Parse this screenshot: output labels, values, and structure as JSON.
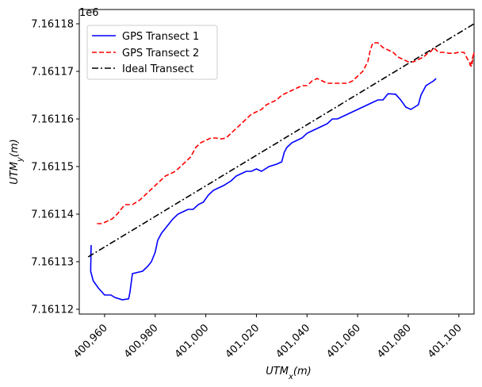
{
  "chart_data": {
    "type": "line",
    "title": "",
    "xlabel_main": "UTM",
    "xlabel_sub": "x",
    "xlabel_unit": "(m)",
    "ylabel_main": "UTM",
    "ylabel_sub": "y",
    "ylabel_unit": "(m)",
    "y_offset_label": "1e6",
    "xlim": [
      400950,
      401106
    ],
    "ylim": [
      7.161119,
      7.161183
    ],
    "xticks": [
      400960,
      400980,
      401000,
      401020,
      401040,
      401060,
      401080,
      401100
    ],
    "xtick_labels": [
      "400,960",
      "400,980",
      "401,000",
      "401,020",
      "401,040",
      "401,060",
      "401,080",
      "401,100"
    ],
    "yticks": [
      7.16112,
      7.16113,
      7.16114,
      7.16115,
      7.16116,
      7.16117,
      7.16118
    ],
    "ytick_labels": [
      "7.16112",
      "7.16113",
      "7.16114",
      "7.16115",
      "7.16116",
      "7.16117",
      "7.16118"
    ],
    "legend_position": "upper-left",
    "series": [
      {
        "name": "GPS Transect 1",
        "color": "#0000ff",
        "style": "solid",
        "x": [
          400954.5,
          400954.7,
          400954.5,
          400955.5,
          400957.5,
          400960,
          400962.5,
          400964,
          400967,
          400969.5,
          400970,
          400971,
          400975,
          400977,
          400978.5,
          400980,
          400981,
          400982.5,
          400984,
          400985.5,
          400987,
          400989,
          400991,
          400993,
          400995,
          400997,
          400999,
          401001,
          401003,
          401005,
          401007,
          401010,
          401012,
          401014,
          401016,
          401018,
          401020,
          401022,
          401025,
          401028,
          401030,
          401031,
          401032,
          401034,
          401036,
          401038,
          401040,
          401042,
          401044,
          401046,
          401048,
          401050,
          401052,
          401054,
          401056,
          401058,
          401060,
          401062,
          401064,
          401066,
          401068,
          401070,
          401072,
          401075,
          401077,
          401079,
          401081,
          401082.5,
          401084,
          401085,
          401086,
          401087,
          401088.5,
          401090,
          401091
        ],
        "y": [
          7.161131,
          7.1611335,
          7.161128,
          7.161126,
          7.1611245,
          7.161123,
          7.161123,
          7.1611225,
          7.161122,
          7.1611222,
          7.1611235,
          7.1611275,
          7.161128,
          7.161129,
          7.16113,
          7.161132,
          7.1611345,
          7.161136,
          7.161137,
          7.161138,
          7.161139,
          7.16114,
          7.1611405,
          7.161141,
          7.161141,
          7.161142,
          7.1611425,
          7.161144,
          7.161145,
          7.1611455,
          7.161146,
          7.161147,
          7.161148,
          7.1611485,
          7.161149,
          7.161149,
          7.1611495,
          7.161149,
          7.16115,
          7.1611505,
          7.161151,
          7.161153,
          7.161154,
          7.161155,
          7.1611555,
          7.161156,
          7.161157,
          7.1611575,
          7.161158,
          7.1611585,
          7.161159,
          7.16116,
          7.16116,
          7.1611605,
          7.161161,
          7.1611615,
          7.161162,
          7.1611625,
          7.161163,
          7.1611635,
          7.161164,
          7.161164,
          7.1611653,
          7.1611652,
          7.161164,
          7.1611625,
          7.161162,
          7.1611625,
          7.161163,
          7.161165,
          7.161166,
          7.161167,
          7.1611675,
          7.161168,
          7.1611685
        ]
      },
      {
        "name": "GPS Transect 2",
        "color": "#ff0000",
        "style": "dashed",
        "x": [
          400957,
          400959,
          400961,
          400963,
          400965,
          400968,
          400971,
          400974,
          400976,
          400978,
          400980,
          400982,
          400984,
          400986,
          400988,
          400990,
          400992,
          400994,
          400996,
          400998,
          401000,
          401002,
          401004,
          401006,
          401008,
          401010,
          401012,
          401014,
          401016,
          401018,
          401020,
          401022,
          401024,
          401026,
          401028,
          401030,
          401032,
          401034,
          401036,
          401038,
          401040,
          401042,
          401044,
          401046,
          401048,
          401050,
          401052,
          401054,
          401056,
          401058,
          401060,
          401062,
          401064,
          401065,
          401066,
          401068,
          401070,
          401072,
          401074,
          401076,
          401078,
          401080,
          401082,
          401084,
          401086,
          401087,
          401088,
          401089,
          401090,
          401092,
          401094,
          401096,
          401098,
          401100,
          401102,
          401104,
          401105,
          401106,
          401105,
          401104,
          401104.5
        ],
        "y": [
          7.161138,
          7.161138,
          7.1611385,
          7.161139,
          7.16114,
          7.161142,
          7.161142,
          7.161143,
          7.161144,
          7.161145,
          7.161146,
          7.161147,
          7.161148,
          7.1611485,
          7.161149,
          7.16115,
          7.161151,
          7.161152,
          7.161154,
          7.161155,
          7.1611555,
          7.161156,
          7.161156,
          7.1611558,
          7.161156,
          7.161157,
          7.161158,
          7.161159,
          7.16116,
          7.161161,
          7.1611615,
          7.161162,
          7.161163,
          7.1611635,
          7.161164,
          7.161165,
          7.1611655,
          7.161166,
          7.1611665,
          7.161167,
          7.161167,
          7.161168,
          7.1611685,
          7.161168,
          7.1611675,
          7.1611675,
          7.1611675,
          7.1611675,
          7.1611675,
          7.161168,
          7.161169,
          7.16117,
          7.161172,
          7.1611745,
          7.161176,
          7.161176,
          7.161175,
          7.1611745,
          7.161174,
          7.161173,
          7.1611725,
          7.161172,
          7.161172,
          7.1611725,
          7.161173,
          7.1611735,
          7.161174,
          7.1611742,
          7.161175,
          7.161174,
          7.161174,
          7.1611738,
          7.1611738,
          7.161174,
          7.161174,
          7.161172,
          7.161171,
          7.161174,
          7.161172,
          7.161171,
          7.161171
        ]
      },
      {
        "name": "Ideal Transect",
        "color": "#000000",
        "style": "dashdot",
        "x": [
          400953.5,
          401106
        ],
        "y": [
          7.161131,
          7.16118
        ]
      }
    ]
  }
}
